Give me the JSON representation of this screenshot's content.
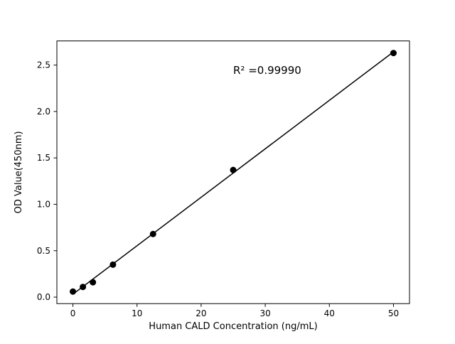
{
  "chart_data": {
    "type": "scatter",
    "title": "",
    "xlabel": "Human CALD Concentration (ng/mL)",
    "ylabel": "OD Value(450nm)",
    "annotation": "R² =0.99990",
    "x": [
      0,
      1.56,
      3.12,
      6.25,
      12.5,
      25,
      50
    ],
    "y": [
      0.06,
      0.11,
      0.16,
      0.35,
      0.68,
      1.37,
      2.63
    ],
    "fit": "linear",
    "xlim": [
      -2.5,
      52.5
    ],
    "ylim": [
      -0.07,
      2.76
    ],
    "xticks": {
      "values": [
        0,
        10,
        20,
        30,
        40,
        50
      ],
      "labels": [
        "0",
        "10",
        "20",
        "30",
        "40",
        "50"
      ]
    },
    "yticks": {
      "values": [
        0,
        0.5,
        1.0,
        1.5,
        2.0,
        2.5
      ],
      "labels": [
        "0.0",
        "0.5",
        "1.0",
        "1.5",
        "2.0",
        "2.5"
      ]
    },
    "marker_color": "#000000",
    "line_color": "#000000",
    "axis_color": "#000000",
    "background": "#ffffff",
    "grid": false,
    "legend": "none"
  }
}
